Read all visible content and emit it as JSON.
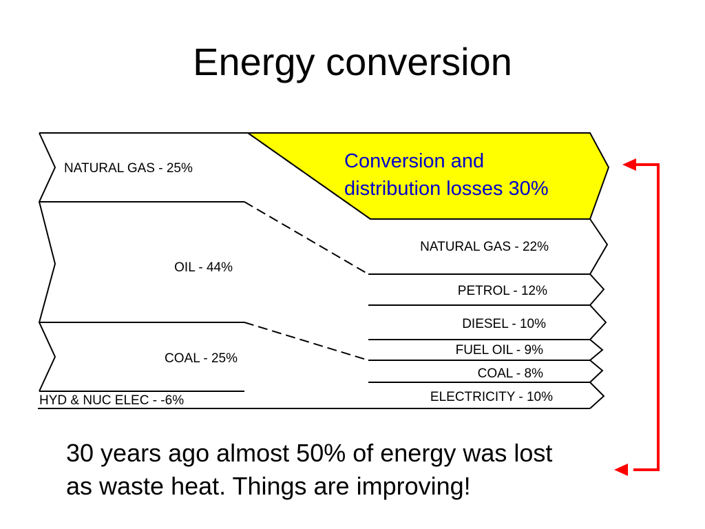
{
  "title": "Energy conversion",
  "colors": {
    "loss_fill": "#ffff00",
    "loss_text": "#0000cc",
    "arrow": "#ff0000",
    "line": "#000000"
  },
  "inputs": [
    {
      "name": "natural_gas",
      "label": "NATURAL GAS - 25%"
    },
    {
      "name": "oil",
      "label": "OIL - 44%"
    },
    {
      "name": "coal",
      "label": "COAL - 25%"
    },
    {
      "name": "hyd_nuc",
      "label": "HYD & NUC ELEC - -6%"
    }
  ],
  "losses": {
    "line1": "Conversion and",
    "line2": "distribution losses 30%"
  },
  "outputs": [
    {
      "name": "natural_gas",
      "label": "NATURAL GAS - 22%"
    },
    {
      "name": "petrol",
      "label": "PETROL - 12%"
    },
    {
      "name": "diesel",
      "label": "DIESEL - 10%"
    },
    {
      "name": "fuel_oil",
      "label": "FUEL OIL - 9%"
    },
    {
      "name": "coal",
      "label": "COAL - 8%"
    },
    {
      "name": "electricity",
      "label": "ELECTRICITY - 10%"
    }
  ],
  "caption": {
    "line1": "30 years ago almost 50% of energy was lost",
    "line2": "as waste heat. Things are improving!"
  }
}
